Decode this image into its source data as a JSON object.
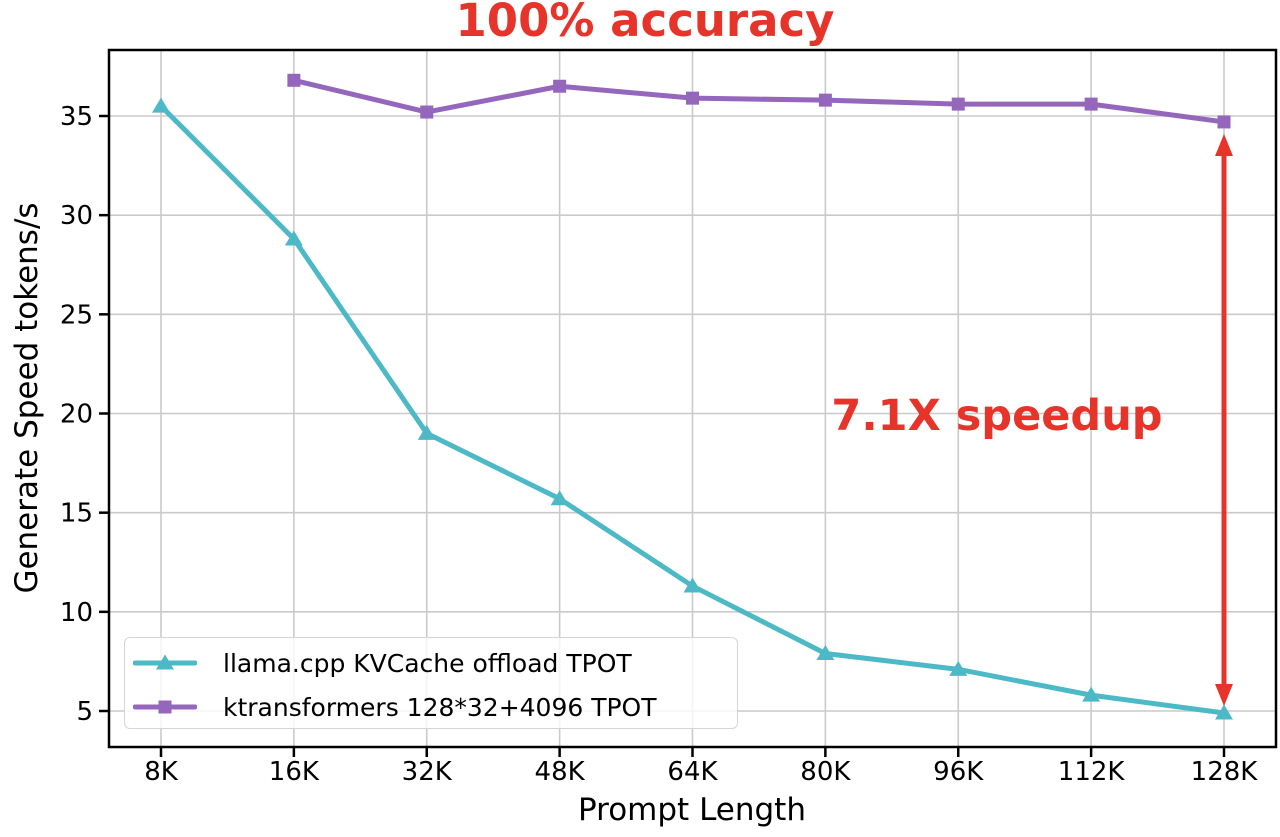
{
  "figure": {
    "background": "#ffffff"
  },
  "chart_data": {
    "type": "line",
    "title": "100% accuracy",
    "title_color": "#e7342b",
    "xlabel": "Prompt Length",
    "ylabel": "Generate Speed tokens/s",
    "categories": [
      "8K",
      "16K",
      "32K",
      "48K",
      "64K",
      "80K",
      "96K",
      "112K",
      "128K"
    ],
    "y_ticks": [
      5,
      10,
      15,
      20,
      25,
      30,
      35
    ],
    "ylim": [
      3.2,
      38.3
    ],
    "grid": true,
    "grid_color": "#cacaca",
    "axis_color": "#000000",
    "legend_position": "lower-left",
    "series": [
      {
        "name": "llama.cpp KVCache offload TPOT",
        "color": "#4db9c7",
        "marker": "triangle-up",
        "values": [
          35.5,
          28.8,
          19.0,
          15.7,
          11.3,
          7.9,
          7.1,
          5.8,
          4.9
        ]
      },
      {
        "name": "ktransformers 128*32+4096 TPOT",
        "color": "#9467bd",
        "marker": "square",
        "values": [
          null,
          36.8,
          35.2,
          36.5,
          35.9,
          35.8,
          35.6,
          35.6,
          34.7
        ]
      }
    ],
    "annotations": {
      "speedup_label": {
        "text": "7.1X speedup",
        "color": "#e7342b"
      },
      "arrow": {
        "x_category": "128K",
        "from_value": 34.7,
        "to_value": 4.9,
        "color": "#e7342b",
        "style": "double-headed-vertical"
      }
    }
  }
}
